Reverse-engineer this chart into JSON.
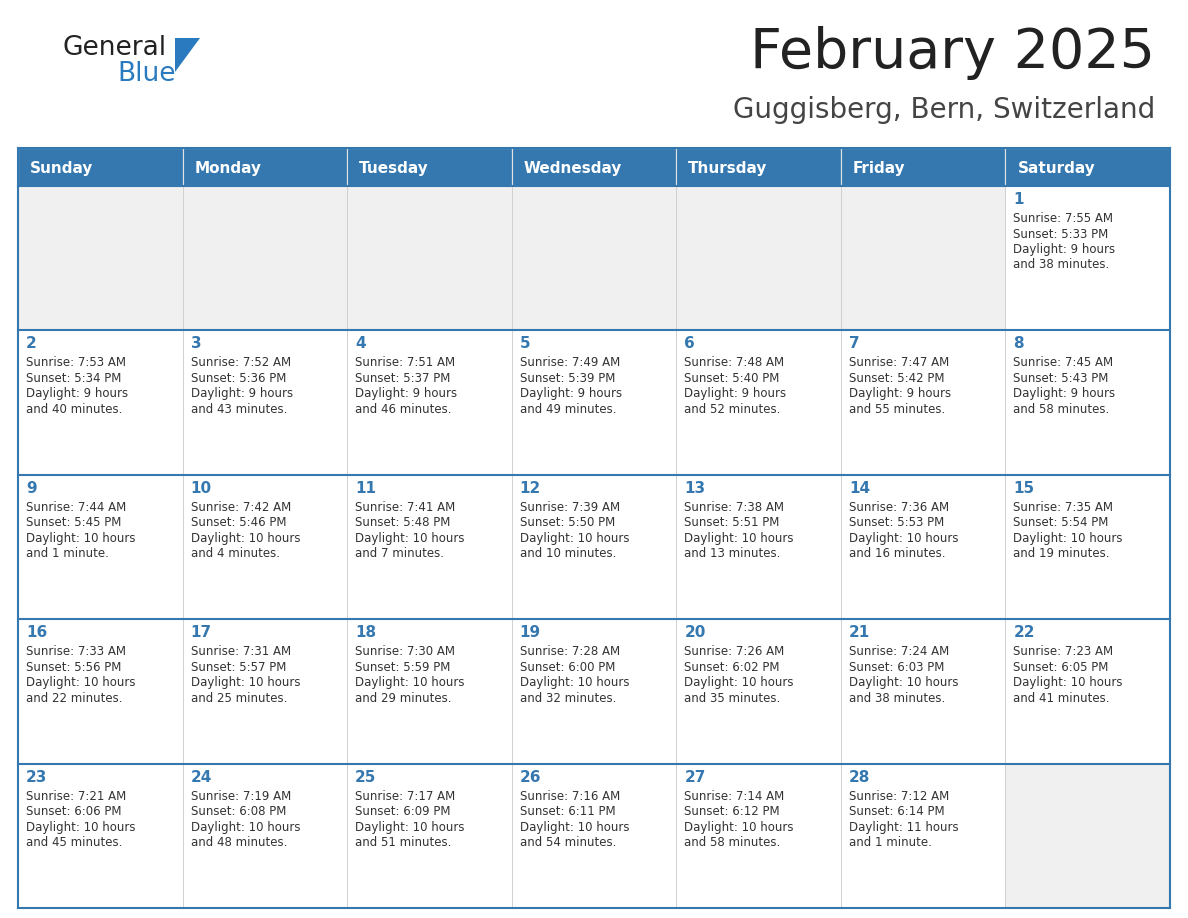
{
  "title": "February 2025",
  "subtitle": "Guggisberg, Bern, Switzerland",
  "header_color": "#3578b0",
  "header_text_color": "#ffffff",
  "day_number_color": "#3578b0",
  "text_color": "#333333",
  "line_color": "#3578b0",
  "cell_bg_empty": "#f0f0f0",
  "cell_bg_filled": "#ffffff",
  "days_of_week": [
    "Sunday",
    "Monday",
    "Tuesday",
    "Wednesday",
    "Thursday",
    "Friday",
    "Saturday"
  ],
  "weeks": [
    [
      {
        "day": null
      },
      {
        "day": null
      },
      {
        "day": null
      },
      {
        "day": null
      },
      {
        "day": null
      },
      {
        "day": null
      },
      {
        "day": 1,
        "sunrise": "7:55 AM",
        "sunset": "5:33 PM",
        "daylight": "9 hours and 38 minutes."
      }
    ],
    [
      {
        "day": 2,
        "sunrise": "7:53 AM",
        "sunset": "5:34 PM",
        "daylight": "9 hours and 40 minutes."
      },
      {
        "day": 3,
        "sunrise": "7:52 AM",
        "sunset": "5:36 PM",
        "daylight": "9 hours and 43 minutes."
      },
      {
        "day": 4,
        "sunrise": "7:51 AM",
        "sunset": "5:37 PM",
        "daylight": "9 hours and 46 minutes."
      },
      {
        "day": 5,
        "sunrise": "7:49 AM",
        "sunset": "5:39 PM",
        "daylight": "9 hours and 49 minutes."
      },
      {
        "day": 6,
        "sunrise": "7:48 AM",
        "sunset": "5:40 PM",
        "daylight": "9 hours and 52 minutes."
      },
      {
        "day": 7,
        "sunrise": "7:47 AM",
        "sunset": "5:42 PM",
        "daylight": "9 hours and 55 minutes."
      },
      {
        "day": 8,
        "sunrise": "7:45 AM",
        "sunset": "5:43 PM",
        "daylight": "9 hours and 58 minutes."
      }
    ],
    [
      {
        "day": 9,
        "sunrise": "7:44 AM",
        "sunset": "5:45 PM",
        "daylight": "10 hours and 1 minute."
      },
      {
        "day": 10,
        "sunrise": "7:42 AM",
        "sunset": "5:46 PM",
        "daylight": "10 hours and 4 minutes."
      },
      {
        "day": 11,
        "sunrise": "7:41 AM",
        "sunset": "5:48 PM",
        "daylight": "10 hours and 7 minutes."
      },
      {
        "day": 12,
        "sunrise": "7:39 AM",
        "sunset": "5:50 PM",
        "daylight": "10 hours and 10 minutes."
      },
      {
        "day": 13,
        "sunrise": "7:38 AM",
        "sunset": "5:51 PM",
        "daylight": "10 hours and 13 minutes."
      },
      {
        "day": 14,
        "sunrise": "7:36 AM",
        "sunset": "5:53 PM",
        "daylight": "10 hours and 16 minutes."
      },
      {
        "day": 15,
        "sunrise": "7:35 AM",
        "sunset": "5:54 PM",
        "daylight": "10 hours and 19 minutes."
      }
    ],
    [
      {
        "day": 16,
        "sunrise": "7:33 AM",
        "sunset": "5:56 PM",
        "daylight": "10 hours and 22 minutes."
      },
      {
        "day": 17,
        "sunrise": "7:31 AM",
        "sunset": "5:57 PM",
        "daylight": "10 hours and 25 minutes."
      },
      {
        "day": 18,
        "sunrise": "7:30 AM",
        "sunset": "5:59 PM",
        "daylight": "10 hours and 29 minutes."
      },
      {
        "day": 19,
        "sunrise": "7:28 AM",
        "sunset": "6:00 PM",
        "daylight": "10 hours and 32 minutes."
      },
      {
        "day": 20,
        "sunrise": "7:26 AM",
        "sunset": "6:02 PM",
        "daylight": "10 hours and 35 minutes."
      },
      {
        "day": 21,
        "sunrise": "7:24 AM",
        "sunset": "6:03 PM",
        "daylight": "10 hours and 38 minutes."
      },
      {
        "day": 22,
        "sunrise": "7:23 AM",
        "sunset": "6:05 PM",
        "daylight": "10 hours and 41 minutes."
      }
    ],
    [
      {
        "day": 23,
        "sunrise": "7:21 AM",
        "sunset": "6:06 PM",
        "daylight": "10 hours and 45 minutes."
      },
      {
        "day": 24,
        "sunrise": "7:19 AM",
        "sunset": "6:08 PM",
        "daylight": "10 hours and 48 minutes."
      },
      {
        "day": 25,
        "sunrise": "7:17 AM",
        "sunset": "6:09 PM",
        "daylight": "10 hours and 51 minutes."
      },
      {
        "day": 26,
        "sunrise": "7:16 AM",
        "sunset": "6:11 PM",
        "daylight": "10 hours and 54 minutes."
      },
      {
        "day": 27,
        "sunrise": "7:14 AM",
        "sunset": "6:12 PM",
        "daylight": "10 hours and 58 minutes."
      },
      {
        "day": 28,
        "sunrise": "7:12 AM",
        "sunset": "6:14 PM",
        "daylight": "11 hours and 1 minute."
      },
      {
        "day": null
      }
    ]
  ]
}
